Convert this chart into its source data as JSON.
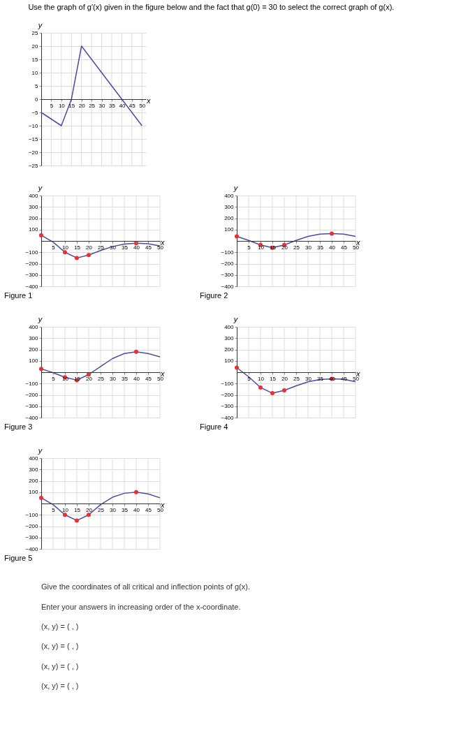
{
  "chart_data": [
    {
      "type": "line",
      "title": "Use the graph of g′(x) given in the figure below and the fact that g(0) = 30 to select the correct graph of g(x).",
      "xlabel": "x",
      "ylabel": "y",
      "xlim": [
        0,
        52
      ],
      "ylim": [
        -25,
        25
      ],
      "xticks": [
        5,
        10,
        15,
        20,
        25,
        30,
        35,
        40,
        45,
        50
      ],
      "yticks": [
        -25,
        -20,
        -15,
        -10,
        -5,
        0,
        5,
        10,
        15,
        20,
        25
      ],
      "grid": true,
      "series": [
        {
          "color": "#4b4ba8",
          "x": [
            0,
            10,
            15,
            20,
            40,
            50
          ],
          "values": [
            -5,
            -10,
            0,
            20,
            0,
            -10
          ]
        }
      ]
    },
    {
      "type": "line",
      "subtitle": "Figure 1",
      "xlabel": "x",
      "ylabel": "y",
      "xlim": [
        0,
        50
      ],
      "ylim": [
        -400,
        400
      ],
      "xticks": [
        5,
        10,
        15,
        20,
        25,
        30,
        35,
        40,
        45,
        50
      ],
      "yticks": [
        -400,
        -300,
        -200,
        -100,
        100,
        200,
        300,
        400
      ],
      "grid": true,
      "series": [
        {
          "color": "#4b4ba8",
          "x": [
            0,
            5,
            10,
            15,
            20,
            25,
            30,
            35,
            40,
            45,
            50
          ],
          "values": [
            50,
            -10,
            -100,
            -150,
            -125,
            -85,
            -50,
            -28,
            -20,
            -25,
            -45
          ]
        },
        {
          "type": "scatter",
          "color": "#e8312f",
          "x": [
            0,
            10,
            15,
            20,
            40
          ],
          "values": [
            50,
            -100,
            -150,
            -125,
            -20
          ]
        }
      ]
    },
    {
      "type": "line",
      "subtitle": "Figure 2",
      "xlabel": "x",
      "ylabel": "y",
      "xlim": [
        0,
        50
      ],
      "ylim": [
        -400,
        400
      ],
      "xticks": [
        5,
        10,
        15,
        20,
        25,
        30,
        35,
        40,
        45,
        50
      ],
      "yticks": [
        -400,
        -300,
        -200,
        -100,
        100,
        200,
        300,
        400
      ],
      "grid": true,
      "series": [
        {
          "color": "#4b4ba8",
          "x": [
            0,
            5,
            10,
            15,
            20,
            25,
            30,
            35,
            40,
            45,
            50
          ],
          "values": [
            40,
            5,
            -35,
            -60,
            -35,
            5,
            40,
            60,
            65,
            60,
            40
          ]
        },
        {
          "type": "scatter",
          "color": "#e8312f",
          "x": [
            0,
            10,
            15,
            20,
            40
          ],
          "values": [
            40,
            -35,
            -60,
            -35,
            65
          ]
        }
      ]
    },
    {
      "type": "line",
      "subtitle": "Figure 3",
      "xlabel": "x",
      "ylabel": "y",
      "xlim": [
        0,
        50
      ],
      "ylim": [
        -400,
        400
      ],
      "xticks": [
        5,
        10,
        15,
        20,
        25,
        30,
        35,
        40,
        45,
        50
      ],
      "yticks": [
        -400,
        -300,
        -200,
        -100,
        100,
        200,
        300,
        400
      ],
      "grid": true,
      "series": [
        {
          "color": "#4b4ba8",
          "x": [
            0,
            5,
            10,
            15,
            20,
            25,
            30,
            35,
            40,
            45,
            50
          ],
          "values": [
            30,
            -5,
            -45,
            -70,
            -20,
            50,
            120,
            165,
            180,
            165,
            135
          ]
        },
        {
          "type": "scatter",
          "color": "#e8312f",
          "x": [
            0,
            10,
            15,
            20,
            40
          ],
          "values": [
            30,
            -45,
            -70,
            -20,
            180
          ]
        }
      ]
    },
    {
      "type": "line",
      "subtitle": "Figure 4",
      "xlabel": "x",
      "ylabel": "y",
      "xlim": [
        0,
        50
      ],
      "ylim": [
        -400,
        400
      ],
      "xticks": [
        5,
        10,
        15,
        20,
        25,
        30,
        35,
        40,
        45,
        50
      ],
      "yticks": [
        -400,
        -300,
        -200,
        -100,
        100,
        200,
        300,
        400
      ],
      "grid": true,
      "series": [
        {
          "color": "#4b4ba8",
          "x": [
            0,
            5,
            10,
            15,
            20,
            25,
            30,
            35,
            40,
            45,
            50
          ],
          "values": [
            40,
            -40,
            -135,
            -185,
            -160,
            -120,
            -85,
            -65,
            -58,
            -62,
            -85
          ]
        },
        {
          "type": "scatter",
          "color": "#e8312f",
          "x": [
            0,
            10,
            15,
            20,
            40
          ],
          "values": [
            40,
            -135,
            -185,
            -160,
            -58
          ]
        }
      ]
    },
    {
      "type": "line",
      "subtitle": "Figure 5",
      "xlabel": "x",
      "ylabel": "y",
      "xlim": [
        0,
        50
      ],
      "ylim": [
        -400,
        400
      ],
      "xticks": [
        5,
        10,
        15,
        20,
        25,
        30,
        35,
        40,
        45,
        50
      ],
      "yticks": [
        -400,
        -300,
        -200,
        -100,
        100,
        200,
        300,
        400
      ],
      "grid": true,
      "series": [
        {
          "color": "#4b4ba8",
          "x": [
            0,
            5,
            10,
            15,
            20,
            25,
            30,
            35,
            40,
            45,
            50
          ],
          "values": [
            50,
            -10,
            -100,
            -150,
            -100,
            -10,
            55,
            90,
            100,
            85,
            50
          ]
        },
        {
          "type": "scatter",
          "color": "#e8312f",
          "x": [
            0,
            10,
            15,
            20,
            40
          ],
          "values": [
            50,
            -100,
            -150,
            -100,
            100
          ]
        }
      ]
    },
    {
      "type": "other",
      "annotations": [
        "Give the coordinates of all critical and inflection points of g(x).",
        "Enter your answers in increasing order of the x-coordinate.",
        "(x, y) = (          ,          )",
        "(x, y) = (          ,          )",
        "(x, y) = (          ,          )",
        "(x, y) = (          ,          )"
      ]
    }
  ]
}
